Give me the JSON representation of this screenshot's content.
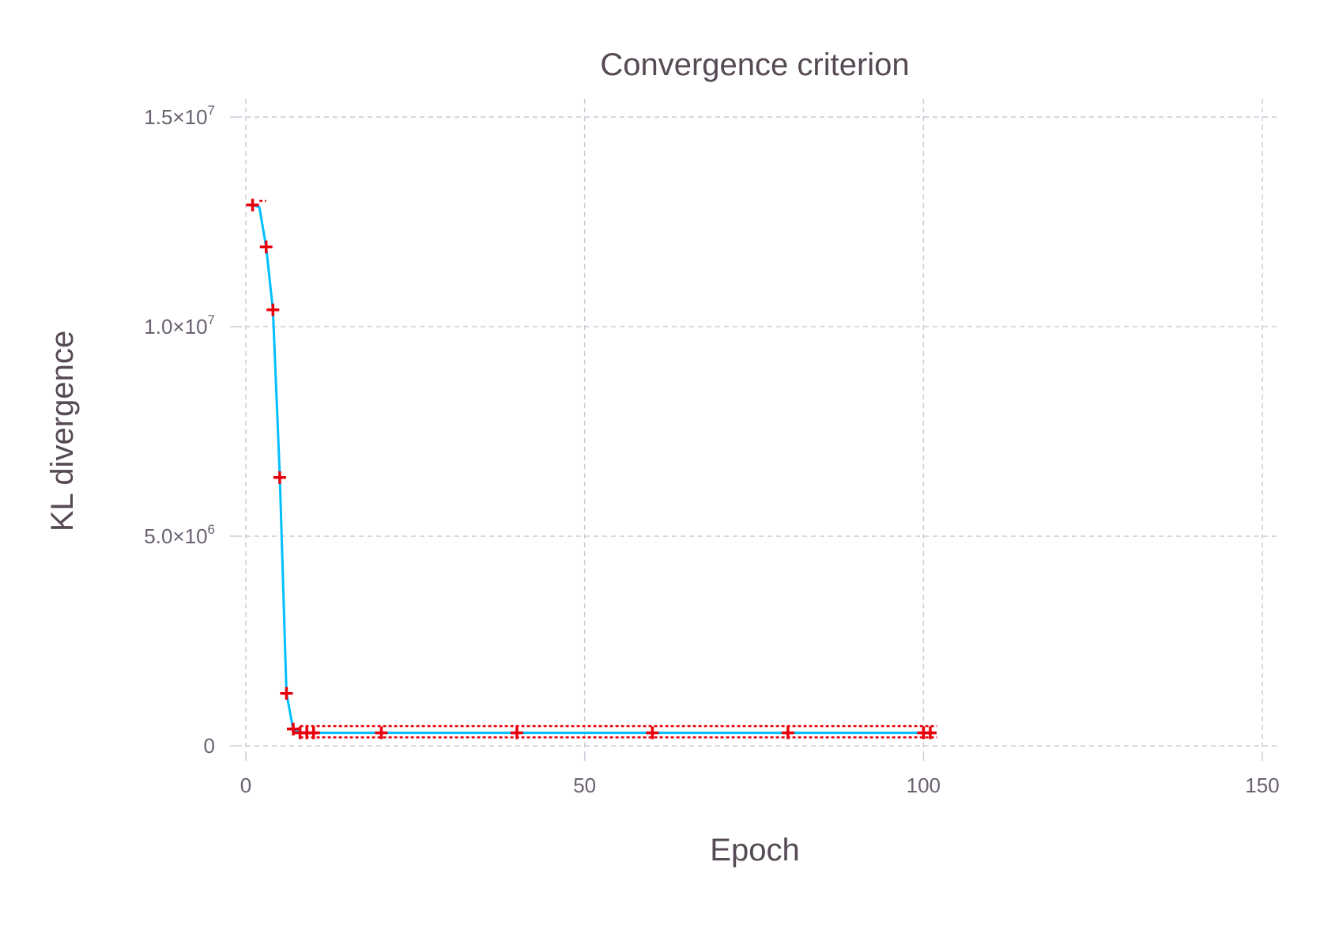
{
  "chart_data": {
    "type": "line",
    "title": "Convergence criterion",
    "xlabel": "Epoch",
    "ylabel": "KL divergence",
    "xlim": [
      0,
      150
    ],
    "ylim": [
      -300000,
      15300000
    ],
    "xticks": [
      {
        "value": 0,
        "label": "0"
      },
      {
        "value": 50,
        "label": "50"
      },
      {
        "value": 100,
        "label": "100"
      },
      {
        "value": 150,
        "label": "150"
      }
    ],
    "yticks": [
      {
        "value": 0,
        "mantissa": "0",
        "exp": ""
      },
      {
        "value": 5000000,
        "mantissa": "5.0×10",
        "exp": "6"
      },
      {
        "value": 10000000,
        "mantissa": "1.0×10",
        "exp": "7"
      },
      {
        "value": 15000000,
        "mantissa": "1.5×10",
        "exp": "7"
      }
    ],
    "grid": true,
    "legend": "none",
    "series": [
      {
        "kind": "line",
        "color": "#00bfff",
        "x": [
          1,
          2,
          3,
          4,
          5,
          6,
          7,
          8,
          10,
          20,
          40,
          60,
          80,
          101
        ],
        "y": [
          12900000,
          12850000,
          11900000,
          10400000,
          6500000,
          1250000,
          380000,
          320000,
          310000,
          310000,
          310000,
          310000,
          310000,
          310000
        ]
      },
      {
        "kind": "scatter",
        "marker": "plus",
        "color": "#e8000b",
        "x": [
          1,
          3,
          4,
          5,
          6,
          7,
          8,
          9,
          10,
          20,
          40,
          60,
          80,
          100,
          101
        ],
        "y": [
          12900000,
          11900000,
          10400000,
          6400000,
          1250000,
          400000,
          310000,
          310000,
          310000,
          310000,
          310000,
          310000,
          310000,
          310000,
          310000
        ]
      },
      {
        "kind": "dotted",
        "color": "#e8000b",
        "x": [
          2,
          3
        ],
        "y": [
          13000000,
          13000000
        ]
      },
      {
        "kind": "dotted",
        "color": "#e8000b",
        "x": [
          8,
          102
        ],
        "y": [
          470000,
          470000
        ]
      },
      {
        "kind": "dotted",
        "color": "#e8000b",
        "x": [
          8,
          102
        ],
        "y": [
          200000,
          200000
        ]
      }
    ]
  }
}
